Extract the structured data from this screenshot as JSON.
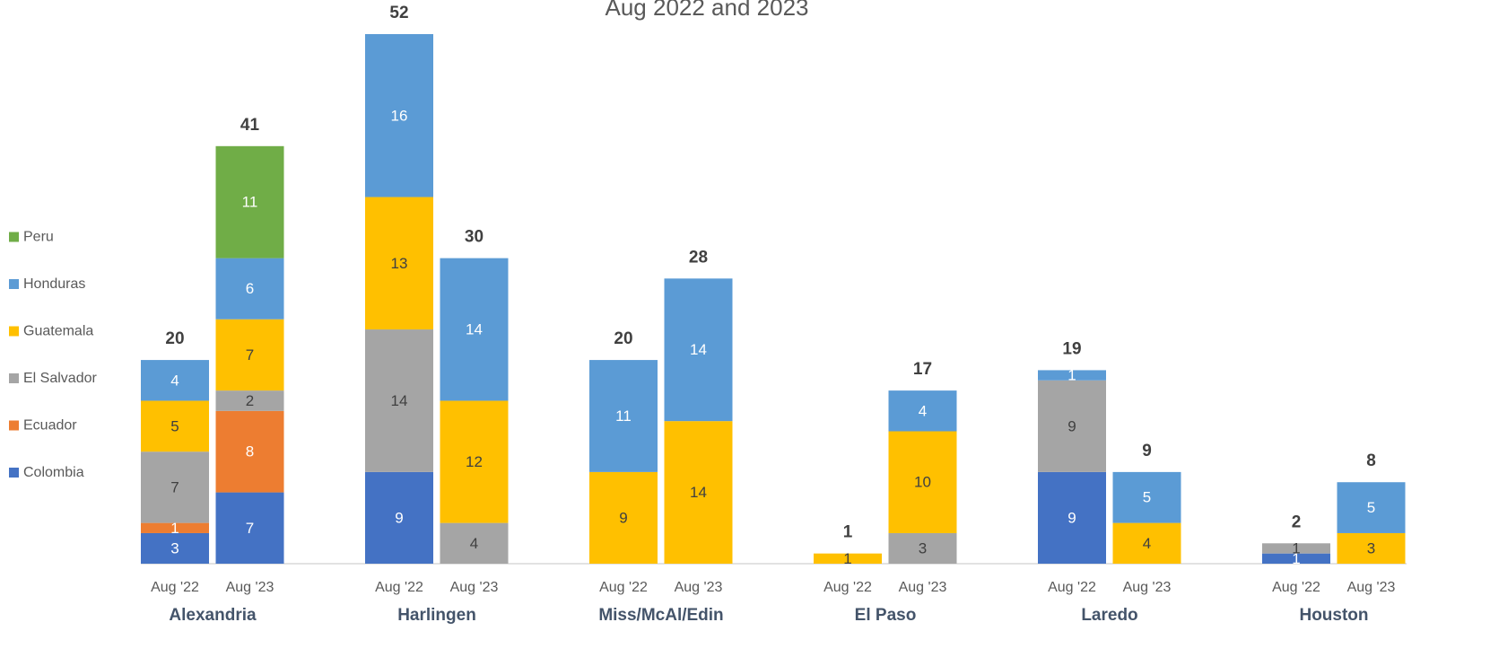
{
  "chart_data": {
    "type": "stacked-bar",
    "title": "Aug 2022 and 2023",
    "groups": [
      "Alexandria",
      "Harlingen",
      "Miss/McAl/Edin",
      "El Paso",
      "Laredo",
      "Houston"
    ],
    "categories": [
      "Aug '22",
      "Aug '23",
      "Aug '22",
      "Aug '23",
      "Aug '22",
      "Aug '23",
      "Aug '22",
      "Aug '23",
      "Aug '22",
      "Aug '23",
      "Aug '22",
      "Aug '23"
    ],
    "series": [
      {
        "name": "Colombia",
        "color": "#4472c4",
        "values": [
          3,
          7,
          9,
          null,
          null,
          null,
          null,
          null,
          9,
          null,
          1,
          null
        ]
      },
      {
        "name": "Ecuador",
        "color": "#ed7d31",
        "values": [
          1,
          8,
          null,
          null,
          null,
          null,
          null,
          null,
          null,
          null,
          null,
          null
        ]
      },
      {
        "name": "El Salvador",
        "color": "#a5a5a5",
        "values": [
          7,
          2,
          14,
          4,
          null,
          null,
          null,
          3,
          9,
          null,
          1,
          null
        ]
      },
      {
        "name": "Guatemala",
        "color": "#ffc000",
        "values": [
          5,
          7,
          13,
          12,
          9,
          14,
          1,
          10,
          null,
          4,
          null,
          3
        ]
      },
      {
        "name": "Honduras",
        "color": "#5b9bd5",
        "values": [
          4,
          6,
          16,
          14,
          11,
          14,
          null,
          4,
          1,
          5,
          null,
          5
        ]
      },
      {
        "name": "Peru",
        "color": "#70ad47",
        "values": [
          null,
          11,
          null,
          null,
          null,
          null,
          null,
          null,
          null,
          null,
          null,
          null
        ]
      }
    ],
    "totals": [
      20,
      41,
      52,
      30,
      20,
      28,
      1,
      17,
      19,
      9,
      2,
      8
    ]
  }
}
